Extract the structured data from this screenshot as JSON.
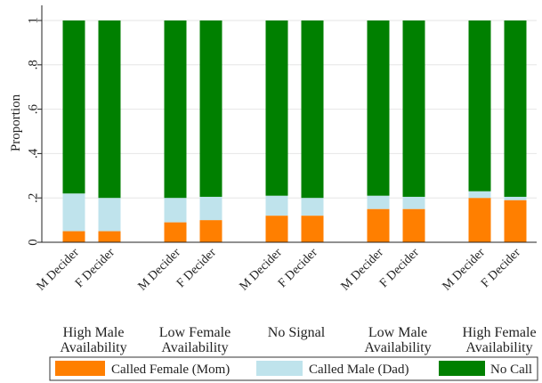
{
  "chart_data": {
    "type": "bar",
    "stacked": true,
    "ylabel": "Proportion",
    "ylim": [
      0,
      1
    ],
    "yticks": [
      {
        "value": 0,
        "label": "0"
      },
      {
        "value": 0.2,
        "label": ".2"
      },
      {
        "value": 0.4,
        "label": ".4"
      },
      {
        "value": 0.6,
        "label": ".6"
      },
      {
        "value": 0.8,
        "label": ".8"
      },
      {
        "value": 1,
        "label": "1"
      }
    ],
    "grid": true,
    "legend_position": "bottom",
    "groups": [
      {
        "label_lines": [
          "High Male",
          "Availability"
        ],
        "bars": [
          {
            "label": "M Decider",
            "called_female": 0.05,
            "called_male": 0.17,
            "no_call": 0.78
          },
          {
            "label": "F Decider",
            "called_female": 0.05,
            "called_male": 0.15,
            "no_call": 0.8
          }
        ]
      },
      {
        "label_lines": [
          "Low Female",
          "Availability"
        ],
        "bars": [
          {
            "label": "M Decider",
            "called_female": 0.09,
            "called_male": 0.11,
            "no_call": 0.8
          },
          {
            "label": "F Decider",
            "called_female": 0.1,
            "called_male": 0.105,
            "no_call": 0.795
          }
        ]
      },
      {
        "label_lines": [
          "No Signal"
        ],
        "bars": [
          {
            "label": "M Decider",
            "called_female": 0.12,
            "called_male": 0.09,
            "no_call": 0.79
          },
          {
            "label": "F Decider",
            "called_female": 0.12,
            "called_male": 0.08,
            "no_call": 0.8
          }
        ]
      },
      {
        "label_lines": [
          "Low Male",
          "Availability"
        ],
        "bars": [
          {
            "label": "M Decider",
            "called_female": 0.15,
            "called_male": 0.06,
            "no_call": 0.79
          },
          {
            "label": "F Decider",
            "called_female": 0.15,
            "called_male": 0.055,
            "no_call": 0.795
          }
        ]
      },
      {
        "label_lines": [
          "High Female",
          "Availability"
        ],
        "bars": [
          {
            "label": "M Decider",
            "called_female": 0.2,
            "called_male": 0.03,
            "no_call": 0.77
          },
          {
            "label": "F Decider",
            "called_female": 0.19,
            "called_male": 0.015,
            "no_call": 0.795
          }
        ]
      }
    ],
    "series": [
      {
        "key": "called_female",
        "name": "Called Female (Mom)",
        "color": "#ff7f00"
      },
      {
        "key": "called_male",
        "name": "Called Male (Dad)",
        "color": "#bfe3ec"
      },
      {
        "key": "no_call",
        "name": "No Call",
        "color": "#008000"
      }
    ],
    "colors": {
      "grid": "#e6e6e6",
      "axis": "#222222",
      "plot_border": "#dddddd"
    }
  }
}
